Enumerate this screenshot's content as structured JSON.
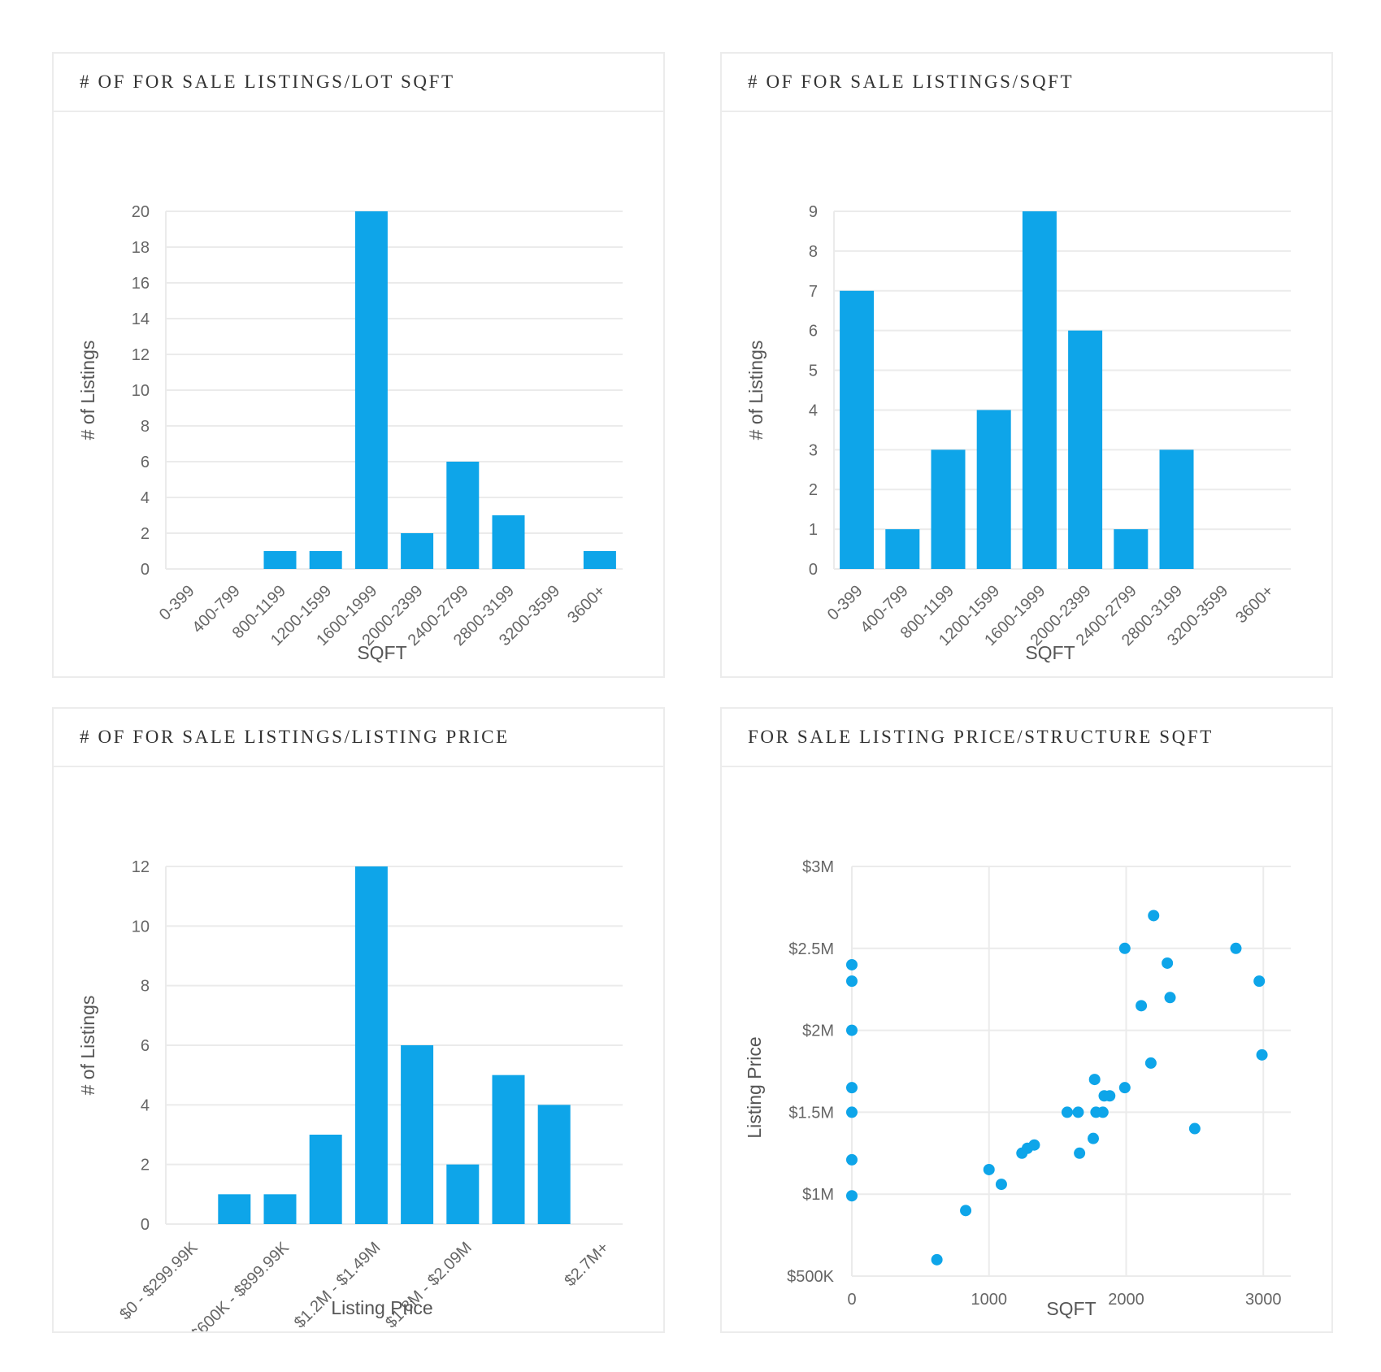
{
  "panels": [
    {
      "title": "# OF FOR SALE LISTINGS/LOT SQFT"
    },
    {
      "title": "# OF FOR SALE LISTINGS/SQFT"
    },
    {
      "title": "# OF FOR SALE LISTINGS/LISTING PRICE"
    },
    {
      "title": "FOR SALE LISTING PRICE/STRUCTURE SQFT"
    }
  ],
  "colors": {
    "bar": "#0ea5e9",
    "point": "#0ea5e9",
    "grid": "#ebebeb"
  },
  "chart_data": [
    {
      "type": "bar",
      "title": "# OF FOR SALE LISTINGS/LOT SQFT",
      "xlabel": "SQFT",
      "ylabel": "# of Listings",
      "categories": [
        "0-399",
        "400-799",
        "800-1199",
        "1200-1599",
        "1600-1999",
        "2000-2399",
        "2400-2799",
        "2800-3199",
        "3200-3599",
        "3600+"
      ],
      "values": [
        0,
        0,
        1,
        1,
        20,
        2,
        6,
        3,
        0,
        1
      ],
      "ylim": [
        0,
        20
      ],
      "yticks": [
        0,
        2,
        4,
        6,
        8,
        10,
        12,
        14,
        16,
        18,
        20
      ],
      "grid": true
    },
    {
      "type": "bar",
      "title": "# OF FOR SALE LISTINGS/SQFT",
      "xlabel": "SQFT",
      "ylabel": "# of Listings",
      "categories": [
        "0-399",
        "400-799",
        "800-1199",
        "1200-1599",
        "1600-1999",
        "2000-2399",
        "2400-2799",
        "2800-3199",
        "3200-3599",
        "3600+"
      ],
      "values": [
        7,
        1,
        3,
        4,
        9,
        6,
        1,
        3,
        0,
        0
      ],
      "ylim": [
        0,
        9
      ],
      "yticks": [
        0,
        1,
        2,
        3,
        4,
        5,
        6,
        7,
        8,
        9
      ],
      "grid": true
    },
    {
      "type": "bar",
      "title": "# OF FOR SALE LISTINGS/LISTING PRICE",
      "xlabel": "Listing Price",
      "ylabel": "# of Listings",
      "categories": [
        "$0 - $299.99K",
        "",
        "$600K - $899.99K",
        "",
        "$1.2M - $1.49M",
        "",
        "$1.8M - $2.09M",
        "",
        "",
        "$2.7M+"
      ],
      "values": [
        0,
        1,
        1,
        3,
        12,
        6,
        2,
        5,
        4,
        0
      ],
      "ylim": [
        0,
        12
      ],
      "yticks": [
        0,
        2,
        4,
        6,
        8,
        10,
        12
      ],
      "grid": true
    },
    {
      "type": "scatter",
      "title": "FOR SALE LISTING PRICE/STRUCTURE SQFT",
      "xlabel": "SQFT",
      "ylabel": "Listing Price",
      "xlim": [
        0,
        3200
      ],
      "ylim": [
        500000,
        3000000
      ],
      "xticks": [
        0,
        1000,
        2000,
        3000
      ],
      "xtick_labels": [
        "0",
        "1000",
        "2000",
        "3000"
      ],
      "yticks": [
        500000,
        1000000,
        1500000,
        2000000,
        2500000,
        3000000
      ],
      "ytick_labels": [
        "$500K",
        "$1M",
        "$1.5M",
        "$2M",
        "$2.5M",
        "$3M"
      ],
      "grid": true,
      "points": [
        [
          0,
          2400000
        ],
        [
          0,
          2300000
        ],
        [
          0,
          2000000
        ],
        [
          0,
          1650000
        ],
        [
          0,
          1500000
        ],
        [
          0,
          1210000
        ],
        [
          0,
          990000
        ],
        [
          620,
          600000
        ],
        [
          830,
          900000
        ],
        [
          1000,
          1150000
        ],
        [
          1090,
          1060000
        ],
        [
          1240,
          1250000
        ],
        [
          1280,
          1280000
        ],
        [
          1330,
          1300000
        ],
        [
          1570,
          1500000
        ],
        [
          1650,
          1500000
        ],
        [
          1660,
          1250000
        ],
        [
          1760,
          1340000
        ],
        [
          1770,
          1700000
        ],
        [
          1780,
          1500000
        ],
        [
          1830,
          1500000
        ],
        [
          1840,
          1600000
        ],
        [
          1880,
          1600000
        ],
        [
          1990,
          2500000
        ],
        [
          1990,
          1650000
        ],
        [
          2110,
          2150000
        ],
        [
          2180,
          1800000
        ],
        [
          2200,
          2700000
        ],
        [
          2300,
          2410000
        ],
        [
          2320,
          2200000
        ],
        [
          2500,
          1400000
        ],
        [
          2800,
          2500000
        ],
        [
          2970,
          2300000
        ],
        [
          2990,
          1850000
        ]
      ]
    }
  ]
}
